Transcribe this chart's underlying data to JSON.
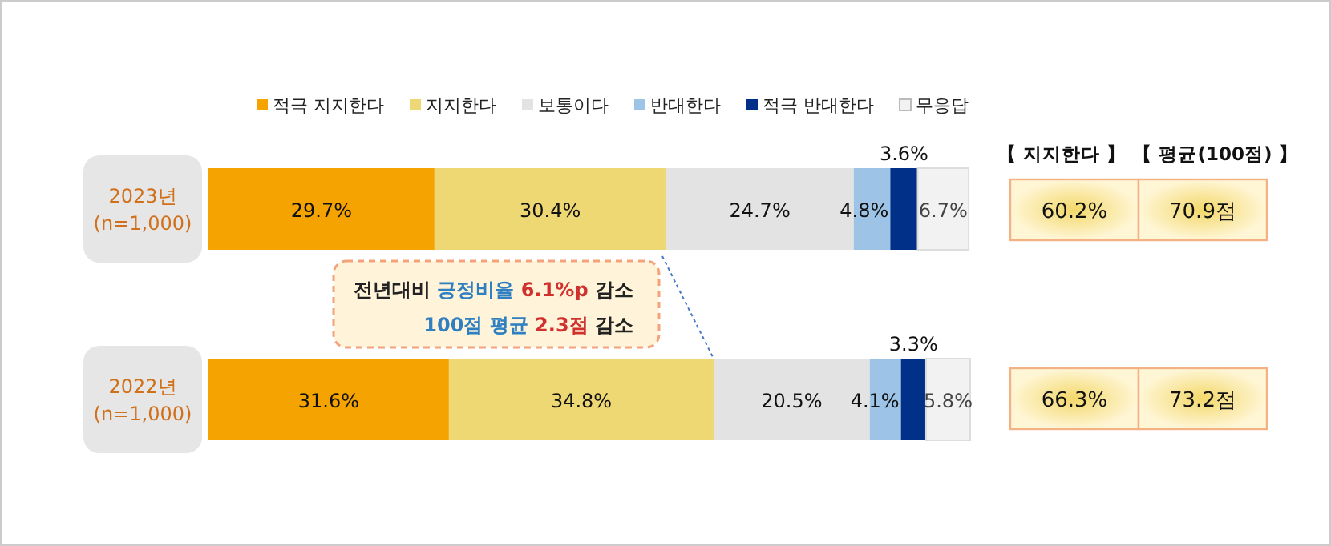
{
  "chart_data": [
    {
      "type": "bar",
      "orientation": "horizontal",
      "stacked": true,
      "legend": "top",
      "categories": [
        "2023년 (n=1,000)",
        "2022년 (n=1,000)"
      ],
      "series": [
        {
          "name": "적극 지지한다",
          "color": "#f4a300",
          "values": [
            29.7,
            31.6
          ],
          "value_labels": [
            "29.7%",
            "31.6%"
          ]
        },
        {
          "name": "지지한다",
          "color": "#eed873",
          "values": [
            30.4,
            34.8
          ],
          "value_labels": [
            "30.4%",
            "34.8%"
          ]
        },
        {
          "name": "보통이다",
          "color": "#e3e3e3",
          "values": [
            24.7,
            20.5
          ],
          "value_labels": [
            "24.7%",
            "20.5%"
          ]
        },
        {
          "name": "반대한다",
          "color": "#9dc3e6",
          "values": [
            4.8,
            4.1
          ],
          "value_labels": [
            "4.8%",
            "4.1%"
          ]
        },
        {
          "name": "적극 반대한다",
          "color": "#003087",
          "values": [
            3.6,
            3.3
          ],
          "value_labels": [
            "3.6%",
            "3.3%"
          ]
        },
        {
          "name": "무응답",
          "color": "#f2f2f2",
          "values": [
            6.7,
            5.8
          ],
          "value_labels": [
            "6.7%",
            "5.8%"
          ]
        }
      ],
      "annotations": [
        "전년대비",
        "긍정비율",
        "6.1%p",
        "감소",
        "100점 평균",
        "2.3점",
        "감소"
      ]
    },
    {
      "type": "other",
      "categories": [
        "【 지지한다 】",
        "【 평균(100점) 】"
      ],
      "annotations": [
        "60.2%",
        "70.9점",
        "66.3%",
        "73.2점"
      ]
    }
  ]
}
